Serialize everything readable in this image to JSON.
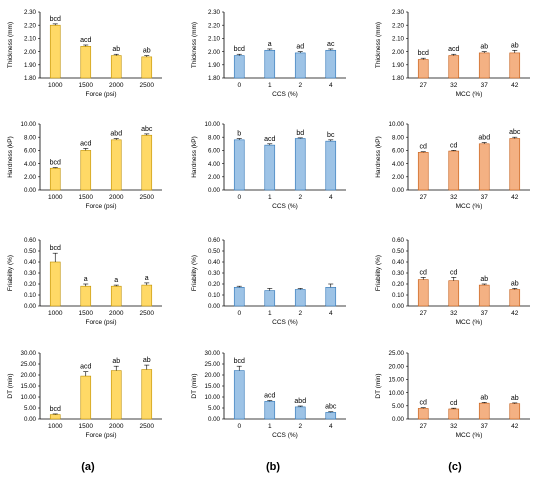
{
  "panel_labels": [
    "(a)",
    "(b)",
    "(c)"
  ],
  "colors": {
    "a": {
      "fill": "#FFD966",
      "stroke": "#BF9000"
    },
    "b": {
      "fill": "#9DC3E6",
      "stroke": "#2E75B6"
    },
    "c": {
      "fill": "#F4B183",
      "stroke": "#C55A11"
    }
  },
  "chart_data": [
    {
      "id": "a-thickness",
      "type": "bar",
      "col": 0,
      "row": 0,
      "xlabel": "Force (psi)",
      "ylabel": "Thickness (mm)",
      "categories": [
        "1000",
        "1500",
        "2000",
        "2500"
      ],
      "values": [
        2.2,
        2.04,
        1.97,
        1.96
      ],
      "errors": [
        0.01,
        0.01,
        0.01,
        0.01
      ],
      "labels": [
        "bcd",
        "acd",
        "ab",
        "ab"
      ],
      "ylim": [
        1.8,
        2.3
      ],
      "yticks": [
        "1.80",
        "1.90",
        "2.00",
        "2.10",
        "2.20",
        "2.30"
      ]
    },
    {
      "id": "b-thickness",
      "type": "bar",
      "col": 1,
      "row": 0,
      "xlabel": "CCS (%)",
      "ylabel": "Thickness (mm)",
      "categories": [
        "0",
        "1",
        "2",
        "4"
      ],
      "values": [
        1.97,
        2.01,
        1.99,
        2.01
      ],
      "errors": [
        0.01,
        0.01,
        0.01,
        0.01
      ],
      "labels": [
        "bcd",
        "a",
        "ad",
        "ac"
      ],
      "ylim": [
        1.8,
        2.3
      ],
      "yticks": [
        "1.80",
        "1.90",
        "2.00",
        "2.10",
        "2.20",
        "2.30"
      ]
    },
    {
      "id": "c-thickness",
      "type": "bar",
      "col": 2,
      "row": 0,
      "xlabel": "MCC (%)",
      "ylabel": "Thickness (mm)",
      "categories": [
        "27",
        "32",
        "37",
        "42"
      ],
      "values": [
        1.94,
        1.97,
        1.99,
        1.99
      ],
      "errors": [
        0.01,
        0.01,
        0.01,
        0.02
      ],
      "labels": [
        "bcd",
        "acd",
        "ab",
        "ab"
      ],
      "ylim": [
        1.8,
        2.3
      ],
      "yticks": [
        "1.80",
        "1.90",
        "2.00",
        "2.10",
        "2.20",
        "2.30"
      ]
    },
    {
      "id": "a-hardness",
      "type": "bar",
      "col": 0,
      "row": 1,
      "xlabel": "Force (psi)",
      "ylabel": "Hardness (kP)",
      "categories": [
        "1000",
        "1500",
        "2000",
        "2500"
      ],
      "values": [
        3.3,
        6.0,
        7.6,
        8.3
      ],
      "errors": [
        0.1,
        0.3,
        0.2,
        0.2
      ],
      "labels": [
        "bcd",
        "acd",
        "abd",
        "abc"
      ],
      "ylim": [
        0,
        10
      ],
      "yticks": [
        "0.00",
        "2.00",
        "4.00",
        "6.00",
        "8.00",
        "10.00"
      ]
    },
    {
      "id": "b-hardness",
      "type": "bar",
      "col": 1,
      "row": 1,
      "xlabel": "CCS (%)",
      "ylabel": "Hardness (kP)",
      "categories": [
        "0",
        "1",
        "2",
        "4"
      ],
      "values": [
        7.6,
        6.8,
        7.8,
        7.4
      ],
      "errors": [
        0.2,
        0.2,
        0.1,
        0.2
      ],
      "labels": [
        "b",
        "acd",
        "bd",
        "bc"
      ],
      "ylim": [
        0,
        10
      ],
      "yticks": [
        "0.00",
        "2.00",
        "4.00",
        "6.00",
        "8.00",
        "10.00"
      ]
    },
    {
      "id": "c-hardness",
      "type": "bar",
      "col": 2,
      "row": 1,
      "xlabel": "MCC (%)",
      "ylabel": "Hardness (kP)",
      "categories": [
        "27",
        "32",
        "37",
        "42"
      ],
      "values": [
        5.7,
        5.9,
        7.0,
        7.8
      ],
      "errors": [
        0.1,
        0.1,
        0.2,
        0.2
      ],
      "labels": [
        "cd",
        "cd",
        "abd",
        "abc"
      ],
      "ylim": [
        0,
        10
      ],
      "yticks": [
        "0.00",
        "2.00",
        "4.00",
        "6.00",
        "8.00",
        "10.00"
      ]
    },
    {
      "id": "a-friability",
      "type": "bar",
      "col": 0,
      "row": 2,
      "xlabel": "Force (psi)",
      "ylabel": "Friability (%)",
      "categories": [
        "1000",
        "1500",
        "2000",
        "2500"
      ],
      "values": [
        0.4,
        0.18,
        0.18,
        0.19
      ],
      "errors": [
        0.08,
        0.02,
        0.01,
        0.02
      ],
      "labels": [
        "bcd",
        "a",
        "a",
        "a"
      ],
      "ylim": [
        0,
        0.6
      ],
      "yticks": [
        "0.00",
        "0.10",
        "0.20",
        "0.30",
        "0.40",
        "0.50",
        "0.60"
      ]
    },
    {
      "id": "b-friability",
      "type": "bar",
      "col": 1,
      "row": 2,
      "xlabel": "CCS (%)",
      "ylabel": "Friability (%)",
      "categories": [
        "0",
        "1",
        "2",
        "4"
      ],
      "values": [
        0.17,
        0.14,
        0.15,
        0.17
      ],
      "errors": [
        0.01,
        0.02,
        0.01,
        0.03
      ],
      "labels": [
        "",
        "",
        "",
        ""
      ],
      "ylim": [
        0,
        0.6
      ],
      "yticks": [
        "0.00",
        "0.10",
        "0.20",
        "0.30",
        "0.40",
        "0.50",
        "0.60"
      ]
    },
    {
      "id": "c-friability",
      "type": "bar",
      "col": 2,
      "row": 2,
      "xlabel": "MCC (%)",
      "ylabel": "Friability (%)",
      "categories": [
        "27",
        "32",
        "37",
        "42"
      ],
      "values": [
        0.24,
        0.23,
        0.19,
        0.15
      ],
      "errors": [
        0.02,
        0.03,
        0.01,
        0.01
      ],
      "labels": [
        "cd",
        "cd",
        "ab",
        "ab"
      ],
      "ylim": [
        0,
        0.6
      ],
      "yticks": [
        "0.00",
        "0.10",
        "0.20",
        "0.30",
        "0.40",
        "0.50",
        "0.60"
      ]
    },
    {
      "id": "a-dt",
      "type": "bar",
      "col": 0,
      "row": 3,
      "xlabel": "Force (psi)",
      "ylabel": "DT (min)",
      "categories": [
        "1000",
        "1500",
        "2000",
        "2500"
      ],
      "values": [
        2.0,
        19.5,
        22.0,
        22.5
      ],
      "errors": [
        0.3,
        2.0,
        2.0,
        2.0
      ],
      "labels": [
        "bcd",
        "acd",
        "ab",
        "ab"
      ],
      "ylim": [
        0,
        30
      ],
      "yticks": [
        "0.00",
        "5.00",
        "10.00",
        "15.00",
        "20.00",
        "25.00",
        "30.00"
      ]
    },
    {
      "id": "b-dt",
      "type": "bar",
      "col": 1,
      "row": 3,
      "xlabel": "CCS (%)",
      "ylabel": "DT (min)",
      "categories": [
        "0",
        "1",
        "2",
        "4"
      ],
      "values": [
        22.0,
        8.0,
        5.5,
        3.0
      ],
      "errors": [
        2.0,
        0.4,
        0.4,
        0.3
      ],
      "labels": [
        "bcd",
        "acd",
        "abd",
        "abc"
      ],
      "ylim": [
        0,
        30
      ],
      "yticks": [
        "0.00",
        "5.00",
        "10.00",
        "15.00",
        "20.00",
        "25.00",
        "30.00"
      ]
    },
    {
      "id": "c-dt",
      "type": "bar",
      "col": 2,
      "row": 3,
      "xlabel": "MCC (%)",
      "ylabel": "DT (min)",
      "categories": [
        "27",
        "32",
        "37",
        "42"
      ],
      "values": [
        4.0,
        3.8,
        6.0,
        5.8
      ],
      "errors": [
        0.3,
        0.3,
        0.3,
        0.3
      ],
      "labels": [
        "cd",
        "cd",
        "ab",
        "ab"
      ],
      "ylim": [
        0,
        25
      ],
      "yticks": [
        "0.00",
        "5.00",
        "10.00",
        "15.00",
        "20.00",
        "25.00"
      ]
    }
  ]
}
